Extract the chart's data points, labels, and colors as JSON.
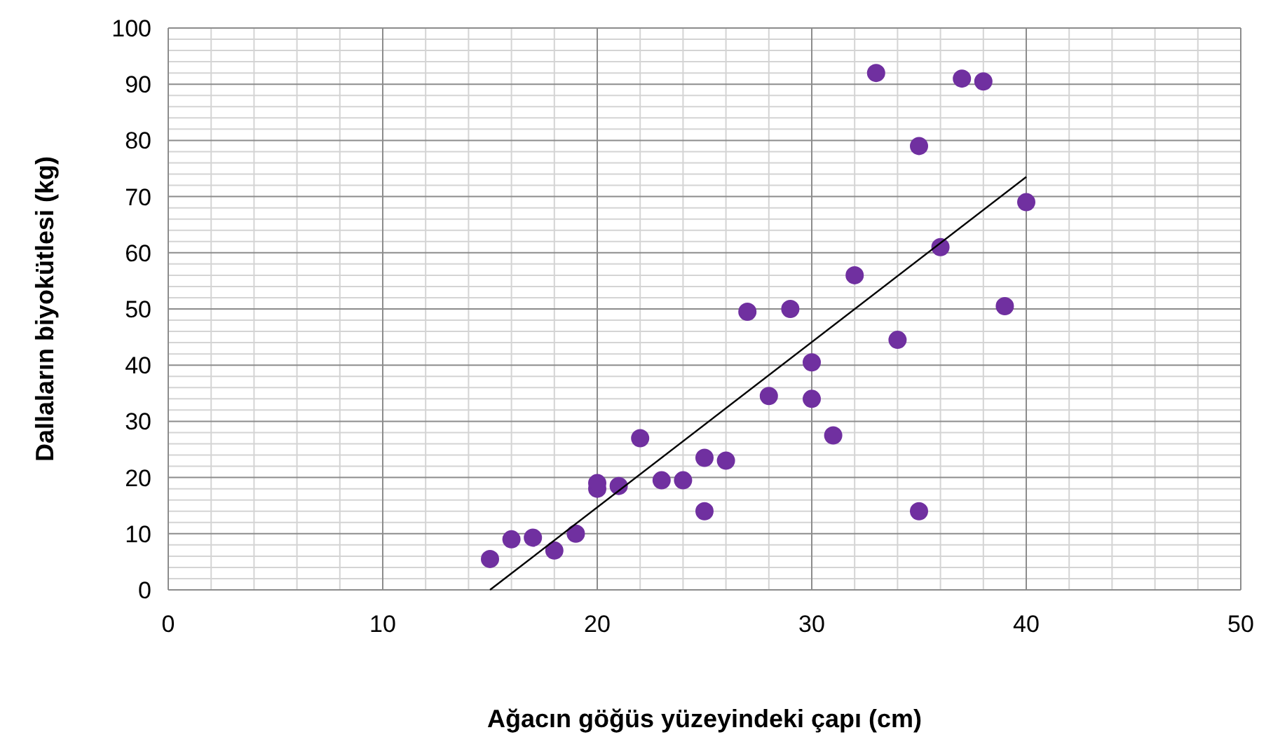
{
  "chart_data": {
    "type": "scatter",
    "xlabel": "Ağacın göğüs yüzeyindeki çapı (cm)",
    "ylabel": "Dallaların biyokütlesi (kg)",
    "xlim": [
      0,
      50
    ],
    "xticks": [
      0,
      10,
      20,
      30,
      40,
      50
    ],
    "ylim": [
      0,
      100
    ],
    "yticks": [
      0,
      10,
      20,
      30,
      40,
      50,
      60,
      70,
      80,
      90,
      100
    ],
    "grid": true,
    "series": [
      {
        "color": "#7030a0",
        "marker": "circle",
        "x": [
          15,
          16,
          17,
          18,
          19,
          20,
          20,
          21,
          22,
          23,
          24,
          25,
          25,
          26,
          27,
          28,
          29,
          30,
          30,
          31,
          32,
          33,
          34,
          35,
          35,
          36,
          37,
          38,
          39,
          40
        ],
        "values": [
          5.5,
          9,
          9.3,
          7,
          10,
          18,
          19,
          18.5,
          27,
          19.5,
          19.5,
          23.5,
          14,
          23,
          49.5,
          34.5,
          50,
          40.5,
          34,
          27.5,
          56,
          92,
          44.5,
          79,
          14,
          61,
          91,
          90.5,
          50.5,
          69
        ]
      },
      {
        "type": "line",
        "color": "#000000",
        "x": [
          15,
          40
        ],
        "values": [
          0,
          73.5
        ],
        "marker": "none"
      }
    ]
  }
}
